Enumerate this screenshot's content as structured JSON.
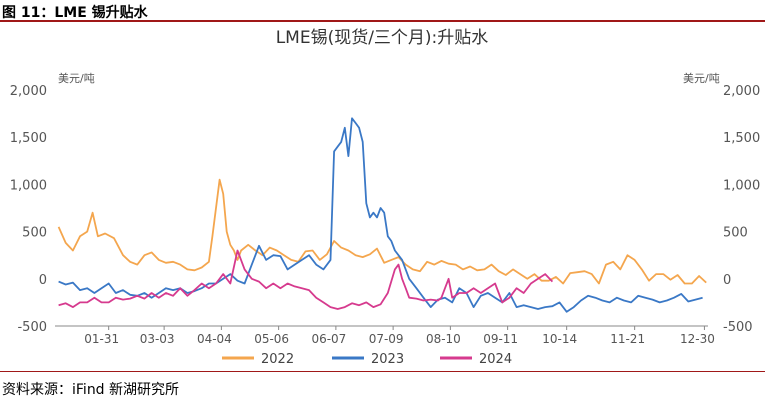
{
  "figure": {
    "label": "图 11：LME 锡升贴水",
    "source": "资料来源：iFind 新湖研究所"
  },
  "colors": {
    "2022": "#f4a64e",
    "2023": "#3a78c6",
    "2024": "#d63a8e",
    "rule": "#a01818"
  },
  "chart_data": {
    "type": "line",
    "title": "LME锡(现货/三个月):升贴水",
    "yunit_left": "美元/吨",
    "yunit_right": "美元/吨",
    "ylim": [
      -500,
      2000
    ],
    "yticks": [
      -500,
      0,
      500,
      1000,
      1500,
      2000
    ],
    "ytick_labels": [
      "-500",
      "0",
      "500",
      "1,000",
      "1,500",
      "2,000"
    ],
    "xlim": [
      0,
      365
    ],
    "xticks": [
      "01-31",
      "03-03",
      "04-04",
      "05-06",
      "06-07",
      "07-09",
      "08-10",
      "09-11",
      "10-14",
      "11-21",
      "12-30"
    ],
    "xtick_days": [
      30,
      61,
      93,
      125,
      157,
      189,
      221,
      253,
      286,
      324,
      363
    ],
    "grid": false,
    "legend_position": "bottom",
    "series": [
      {
        "name": "2022",
        "x": [
          2,
          6,
          10,
          14,
          18,
          21,
          24,
          28,
          33,
          38,
          42,
          46,
          50,
          54,
          58,
          62,
          66,
          70,
          74,
          78,
          82,
          86,
          88,
          90,
          92,
          94,
          96,
          98,
          100,
          102,
          104,
          108,
          112,
          116,
          120,
          124,
          128,
          132,
          136,
          140,
          144,
          148,
          152,
          156,
          160,
          164,
          168,
          172,
          176,
          180,
          184,
          188,
          192,
          196,
          200,
          204,
          208,
          212,
          216,
          220,
          224,
          228,
          232,
          236,
          240,
          244,
          248,
          252,
          256,
          260,
          264,
          268,
          272,
          276,
          280,
          284,
          288,
          292,
          296,
          300,
          304,
          308,
          312,
          316,
          320,
          324,
          328,
          332,
          336,
          340,
          344,
          348,
          352,
          356,
          360,
          364
        ],
        "y": [
          550,
          380,
          300,
          450,
          500,
          700,
          450,
          480,
          430,
          250,
          180,
          150,
          250,
          280,
          200,
          170,
          180,
          150,
          100,
          90,
          120,
          180,
          450,
          750,
          1050,
          900,
          500,
          360,
          300,
          200,
          300,
          360,
          300,
          250,
          330,
          300,
          250,
          200,
          180,
          290,
          300,
          200,
          260,
          400,
          330,
          300,
          250,
          230,
          260,
          320,
          170,
          200,
          230,
          150,
          100,
          80,
          180,
          150,
          190,
          160,
          150,
          100,
          130,
          90,
          100,
          150,
          80,
          40,
          100,
          50,
          0,
          50,
          -20,
          -20,
          20,
          -50,
          60,
          70,
          80,
          50,
          -50,
          150,
          180,
          100,
          250,
          200,
          100,
          -20,
          50,
          50,
          -10,
          40,
          -50,
          -50,
          30,
          -40
        ]
      },
      {
        "name": "2023",
        "x": [
          2,
          6,
          10,
          14,
          18,
          22,
          26,
          30,
          34,
          38,
          42,
          46,
          50,
          54,
          58,
          62,
          66,
          70,
          74,
          78,
          82,
          86,
          90,
          94,
          98,
          102,
          106,
          110,
          114,
          118,
          122,
          126,
          130,
          134,
          138,
          142,
          146,
          150,
          154,
          156,
          158,
          160,
          162,
          164,
          166,
          168,
          170,
          172,
          174,
          176,
          178,
          180,
          182,
          184,
          186,
          188,
          190,
          194,
          198,
          202,
          206,
          210,
          214,
          218,
          222,
          226,
          230,
          234,
          238,
          242,
          246,
          250,
          254,
          258,
          262,
          266,
          270,
          274,
          278,
          282,
          286,
          290,
          294,
          298,
          302,
          306,
          310,
          314,
          318,
          322,
          326,
          330,
          334,
          338,
          342,
          346,
          350,
          354,
          358,
          362
        ],
        "y": [
          -30,
          -60,
          -40,
          -120,
          -100,
          -150,
          -100,
          -50,
          -150,
          -120,
          -170,
          -180,
          -150,
          -200,
          -150,
          -100,
          -120,
          -100,
          -150,
          -130,
          -100,
          -50,
          -50,
          0,
          50,
          -20,
          -50,
          150,
          350,
          200,
          250,
          240,
          100,
          150,
          200,
          250,
          150,
          100,
          200,
          1350,
          1400,
          1450,
          1600,
          1300,
          1700,
          1650,
          1600,
          1450,
          800,
          650,
          700,
          650,
          750,
          700,
          450,
          400,
          300,
          200,
          0,
          -100,
          -200,
          -300,
          -220,
          -200,
          -250,
          -100,
          -150,
          -300,
          -180,
          -150,
          -200,
          -250,
          -150,
          -300,
          -280,
          -300,
          -320,
          -300,
          -290,
          -250,
          -350,
          -300,
          -230,
          -180,
          -200,
          -230,
          -250,
          -200,
          -230,
          -250,
          -180,
          -200,
          -220,
          -250,
          -230,
          -200,
          -160,
          -240,
          -220,
          -200
        ]
      },
      {
        "name": "2024",
        "x": [
          2,
          6,
          10,
          14,
          18,
          22,
          26,
          30,
          34,
          38,
          42,
          46,
          50,
          54,
          58,
          62,
          66,
          70,
          74,
          78,
          82,
          86,
          90,
          94,
          98,
          102,
          106,
          110,
          114,
          118,
          122,
          126,
          130,
          134,
          138,
          142,
          146,
          150,
          154,
          158,
          162,
          166,
          170,
          174,
          178,
          182,
          186,
          190,
          192,
          194,
          196,
          198,
          202,
          206,
          210,
          214,
          216,
          218,
          220,
          222,
          226,
          230,
          234,
          238,
          242,
          246,
          250,
          254,
          258,
          262,
          266,
          270,
          274,
          278
        ],
        "y": [
          -280,
          -260,
          -300,
          -250,
          -250,
          -200,
          -250,
          -250,
          -200,
          -220,
          -210,
          -180,
          -210,
          -150,
          -200,
          -150,
          -180,
          -100,
          -180,
          -120,
          -50,
          -100,
          -50,
          50,
          -50,
          300,
          100,
          0,
          -30,
          -100,
          -50,
          -100,
          -50,
          -80,
          -100,
          -120,
          -200,
          -250,
          -300,
          -320,
          -300,
          -260,
          -280,
          -250,
          -300,
          -270,
          -150,
          100,
          150,
          0,
          -100,
          -200,
          -210,
          -230,
          -220,
          -230,
          -200,
          -100,
          0,
          -200,
          -150,
          -150,
          -100,
          -150,
          -100,
          -50,
          -250,
          -200,
          -100,
          -150,
          -50,
          0,
          50,
          -30
        ]
      }
    ]
  }
}
